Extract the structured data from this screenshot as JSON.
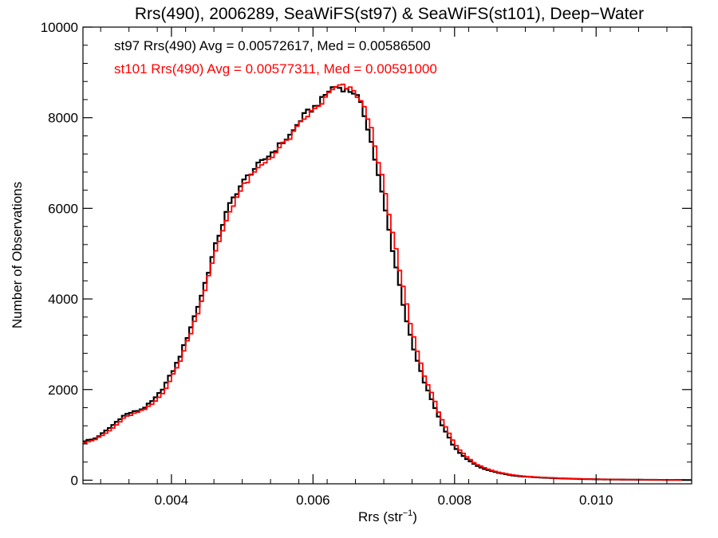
{
  "chart_data": {
    "type": "line",
    "title": "Rrs(490), 2006289, SeaWiFS(st97) & SeaWiFS(st101), Deep−Water",
    "xlabel": "Rrs (str⁻¹)",
    "xlabel_main": "Rrs (str",
    "xlabel_sup": "−1",
    "xlabel_close": ")",
    "ylabel": "Number of Observations",
    "xlim": [
      0.00275,
      0.01135
    ],
    "ylim": [
      -80,
      10000
    ],
    "xticks": [
      0.004,
      0.006,
      0.008,
      0.01
    ],
    "xtick_labels": [
      "0.004",
      "0.006",
      "0.008",
      "0.010"
    ],
    "yticks": [
      0,
      2000,
      4000,
      6000,
      8000,
      10000
    ],
    "ytick_labels": [
      "0",
      "2000",
      "4000",
      "6000",
      "8000",
      "10000"
    ],
    "grid": false,
    "legend_position": "top-left",
    "annotations": [
      {
        "text": "st97 Rrs(490) Avg = 0.00572617, Med = 0.00586500",
        "color": "#000000"
      },
      {
        "text": "st101 Rrs(490) Avg = 0.00577311, Med = 0.00591000",
        "color": "#ff0000"
      }
    ],
    "bin_width": 5e-05,
    "series": [
      {
        "name": "st97",
        "color": "#000000",
        "x": [
          0.00275,
          0.0028,
          0.0029,
          0.003,
          0.0031,
          0.0032,
          0.0033,
          0.0034,
          0.0035,
          0.0036,
          0.0037,
          0.0038,
          0.0039,
          0.004,
          0.0041,
          0.0042,
          0.0043,
          0.0044,
          0.0045,
          0.0046,
          0.0047,
          0.0048,
          0.0049,
          0.005,
          0.0051,
          0.0052,
          0.0053,
          0.0054,
          0.0055,
          0.0056,
          0.0057,
          0.0058,
          0.0059,
          0.006,
          0.0061,
          0.0062,
          0.0063,
          0.0064,
          0.0065,
          0.0066,
          0.0067,
          0.0068,
          0.0069,
          0.007,
          0.0071,
          0.0072,
          0.0073,
          0.0074,
          0.0075,
          0.0076,
          0.0077,
          0.0078,
          0.0079,
          0.008,
          0.0081,
          0.0082,
          0.0083,
          0.0084,
          0.0085,
          0.0086,
          0.0087,
          0.0088,
          0.0089,
          0.009,
          0.0092,
          0.0094,
          0.0096,
          0.0098,
          0.01,
          0.0102,
          0.0104,
          0.0106,
          0.0108,
          0.011,
          0.0112,
          0.01135
        ],
        "y": [
          850,
          880,
          900,
          1000,
          1120,
          1250,
          1400,
          1480,
          1520,
          1580,
          1700,
          1850,
          2080,
          2350,
          2650,
          3050,
          3500,
          3950,
          4480,
          5050,
          5550,
          6000,
          6300,
          6550,
          6750,
          6920,
          7050,
          7200,
          7350,
          7500,
          7650,
          7900,
          8100,
          8200,
          8350,
          8550,
          8700,
          8650,
          8600,
          8550,
          8200,
          7650,
          6900,
          6150,
          5300,
          4500,
          3700,
          3000,
          2500,
          2050,
          1700,
          1300,
          1000,
          720,
          560,
          440,
          330,
          260,
          210,
          170,
          140,
          110,
          90,
          80,
          60,
          45,
          35,
          25,
          20,
          15,
          12,
          10,
          8,
          6,
          5,
          5
        ]
      },
      {
        "name": "st101",
        "color": "#ff0000",
        "x": [
          0.00275,
          0.0028,
          0.0029,
          0.003,
          0.0031,
          0.0032,
          0.0033,
          0.0034,
          0.0035,
          0.0036,
          0.0037,
          0.0038,
          0.0039,
          0.004,
          0.0041,
          0.0042,
          0.0043,
          0.0044,
          0.0045,
          0.0046,
          0.0047,
          0.0048,
          0.0049,
          0.005,
          0.0051,
          0.0052,
          0.0053,
          0.0054,
          0.0055,
          0.0056,
          0.0057,
          0.0058,
          0.0059,
          0.006,
          0.0061,
          0.0062,
          0.0063,
          0.0064,
          0.0065,
          0.0066,
          0.0067,
          0.0068,
          0.0069,
          0.007,
          0.0071,
          0.0072,
          0.0073,
          0.0074,
          0.0075,
          0.0076,
          0.0077,
          0.0078,
          0.0079,
          0.008,
          0.0081,
          0.0082,
          0.0083,
          0.0084,
          0.0085,
          0.0086,
          0.0087,
          0.0088,
          0.0089,
          0.009,
          0.0092,
          0.0094,
          0.0096,
          0.0098,
          0.01,
          0.0102,
          0.0104,
          0.0106,
          0.0108,
          0.011,
          0.0112,
          0.01135
        ],
        "y": [
          820,
          850,
          880,
          960,
          1060,
          1180,
          1330,
          1430,
          1480,
          1540,
          1640,
          1780,
          1980,
          2250,
          2550,
          2950,
          3380,
          3830,
          4350,
          4900,
          5400,
          5850,
          6180,
          6450,
          6650,
          6830,
          6980,
          7130,
          7280,
          7450,
          7600,
          7820,
          8020,
          8150,
          8280,
          8480,
          8650,
          8700,
          8650,
          8550,
          8300,
          7900,
          7250,
          6500,
          5650,
          4850,
          4050,
          3300,
          2700,
          2200,
          1820,
          1420,
          1100,
          800,
          620,
          480,
          360,
          290,
          230,
          185,
          150,
          120,
          100,
          85,
          65,
          50,
          38,
          28,
          22,
          16,
          13,
          11,
          9,
          7,
          6,
          5
        ]
      }
    ]
  }
}
